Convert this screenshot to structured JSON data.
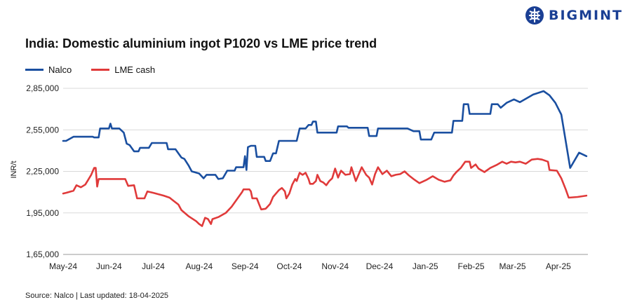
{
  "brand": {
    "name": "BIGMINT",
    "color": "#1a3f94"
  },
  "title": "India: Domestic aluminium ingot P1020 vs LME price trend",
  "ylabel": "INR/t",
  "source": "Source: Nalco | Last updated: 18-04-2025",
  "chart_data": {
    "type": "line",
    "title": "India: Domestic aluminium ingot P1020 vs LME price trend",
    "xlabel": "",
    "ylabel": "INR/t",
    "ylim": [
      165000,
      285000
    ],
    "yticks": [
      165000,
      195000,
      225000,
      255000,
      285000
    ],
    "ytick_labels": [
      "1,65,000",
      "1,95,000",
      "2,25,000",
      "2,55,000",
      "2,85,000"
    ],
    "xticks": [
      "2024-05-01",
      "2024-06-01",
      "2024-07-01",
      "2024-08-01",
      "2024-09-01",
      "2024-10-01",
      "2024-11-01",
      "2024-12-01",
      "2025-01-01",
      "2025-02-01",
      "2025-03-01",
      "2025-04-01"
    ],
    "xtick_labels": [
      "May-24",
      "Jun-24",
      "Jul-24",
      "Aug-24",
      "Sep-24",
      "Oct-24",
      "Nov-24",
      "Dec-24",
      "Jan-25",
      "Feb-25",
      "Mar-25",
      "Apr-25"
    ],
    "xlim": [
      "2024-05-01",
      "2025-04-21"
    ],
    "grid": "horizontal",
    "legend": "top-left",
    "series": [
      {
        "name": "Nalco",
        "color": "#1a4fa0",
        "points": [
          [
            "2024-05-01",
            247000
          ],
          [
            "2024-05-03",
            247000
          ],
          [
            "2024-05-08",
            250000
          ],
          [
            "2024-05-15",
            250000
          ],
          [
            "2024-05-21",
            250000
          ],
          [
            "2024-05-22",
            249500
          ],
          [
            "2024-05-25",
            249500
          ],
          [
            "2024-05-26",
            256000
          ],
          [
            "2024-06-01",
            256000
          ],
          [
            "2024-06-02",
            259500
          ],
          [
            "2024-06-03",
            256000
          ],
          [
            "2024-06-08",
            256000
          ],
          [
            "2024-06-11",
            253000
          ],
          [
            "2024-06-13",
            245000
          ],
          [
            "2024-06-15",
            244000
          ],
          [
            "2024-06-18",
            239500
          ],
          [
            "2024-06-21",
            239500
          ],
          [
            "2024-06-22",
            242000
          ],
          [
            "2024-06-28",
            242000
          ],
          [
            "2024-06-30",
            245500
          ],
          [
            "2024-07-10",
            245500
          ],
          [
            "2024-07-11",
            241000
          ],
          [
            "2024-07-16",
            241000
          ],
          [
            "2024-07-20",
            235000
          ],
          [
            "2024-07-22",
            234000
          ],
          [
            "2024-07-25",
            229000
          ],
          [
            "2024-07-27",
            225000
          ],
          [
            "2024-08-01",
            223500
          ],
          [
            "2024-08-04",
            220000
          ],
          [
            "2024-08-06",
            222500
          ],
          [
            "2024-08-12",
            222500
          ],
          [
            "2024-08-14",
            219500
          ],
          [
            "2024-08-17",
            220000
          ],
          [
            "2024-08-20",
            225500
          ],
          [
            "2024-08-25",
            225500
          ],
          [
            "2024-08-26",
            228000
          ],
          [
            "2024-08-31",
            228000
          ],
          [
            "2024-09-01",
            236000
          ],
          [
            "2024-09-02",
            226000
          ],
          [
            "2024-09-03",
            242500
          ],
          [
            "2024-09-05",
            243500
          ],
          [
            "2024-09-08",
            243500
          ],
          [
            "2024-09-09",
            235500
          ],
          [
            "2024-09-14",
            235500
          ],
          [
            "2024-09-15",
            232500
          ],
          [
            "2024-09-18",
            232500
          ],
          [
            "2024-09-20",
            238000
          ],
          [
            "2024-09-22",
            238000
          ],
          [
            "2024-09-24",
            247000
          ],
          [
            "2024-10-06",
            247000
          ],
          [
            "2024-10-08",
            256000
          ],
          [
            "2024-10-12",
            256000
          ],
          [
            "2024-10-14",
            258500
          ],
          [
            "2024-10-16",
            258500
          ],
          [
            "2024-10-17",
            261000
          ],
          [
            "2024-10-19",
            261000
          ],
          [
            "2024-10-20",
            253000
          ],
          [
            "2024-11-02",
            253000
          ],
          [
            "2024-11-03",
            257500
          ],
          [
            "2024-11-09",
            257500
          ],
          [
            "2024-11-10",
            256500
          ],
          [
            "2024-11-23",
            256500
          ],
          [
            "2024-11-24",
            250500
          ],
          [
            "2024-11-29",
            250500
          ],
          [
            "2024-11-30",
            256000
          ],
          [
            "2024-12-20",
            256000
          ],
          [
            "2024-12-24",
            254000
          ],
          [
            "2024-12-28",
            254000
          ],
          [
            "2024-12-29",
            248000
          ],
          [
            "2025-01-05",
            248000
          ],
          [
            "2025-01-07",
            253000
          ],
          [
            "2025-01-19",
            253000
          ],
          [
            "2025-01-20",
            261500
          ],
          [
            "2025-01-26",
            261500
          ],
          [
            "2025-01-27",
            273500
          ],
          [
            "2025-01-30",
            273500
          ],
          [
            "2025-01-31",
            266500
          ],
          [
            "2025-02-14",
            266500
          ],
          [
            "2025-02-15",
            273500
          ],
          [
            "2025-02-19",
            273500
          ],
          [
            "2025-02-21",
            271000
          ],
          [
            "2025-02-25",
            274500
          ],
          [
            "2025-03-02",
            277000
          ],
          [
            "2025-03-06",
            275000
          ],
          [
            "2025-03-15",
            280500
          ],
          [
            "2025-03-22",
            283000
          ],
          [
            "2025-03-26",
            280000
          ],
          [
            "2025-03-30",
            274500
          ],
          [
            "2025-04-03",
            266000
          ],
          [
            "2025-04-09",
            227500
          ],
          [
            "2025-04-15",
            238500
          ],
          [
            "2025-04-20",
            236000
          ]
        ]
      },
      {
        "name": "LME cash",
        "color": "#e03a3a",
        "points": [
          [
            "2024-05-01",
            209000
          ],
          [
            "2024-05-03",
            209500
          ],
          [
            "2024-05-08",
            211000
          ],
          [
            "2024-05-10",
            215000
          ],
          [
            "2024-05-13",
            213500
          ],
          [
            "2024-05-16",
            215500
          ],
          [
            "2024-05-18",
            219000
          ],
          [
            "2024-05-20",
            222500
          ],
          [
            "2024-05-22",
            227500
          ],
          [
            "2024-05-23",
            227500
          ],
          [
            "2024-05-24",
            214000
          ],
          [
            "2024-05-25",
            219500
          ],
          [
            "2024-06-12",
            219500
          ],
          [
            "2024-06-14",
            214500
          ],
          [
            "2024-06-18",
            215000
          ],
          [
            "2024-06-20",
            205500
          ],
          [
            "2024-06-25",
            205500
          ],
          [
            "2024-06-27",
            210500
          ],
          [
            "2024-07-01",
            209500
          ],
          [
            "2024-07-08",
            207500
          ],
          [
            "2024-07-12",
            206000
          ],
          [
            "2024-07-15",
            203500
          ],
          [
            "2024-07-18",
            201000
          ],
          [
            "2024-07-20",
            197000
          ],
          [
            "2024-07-25",
            192500
          ],
          [
            "2024-07-30",
            189000
          ],
          [
            "2024-08-01",
            187000
          ],
          [
            "2024-08-03",
            185500
          ],
          [
            "2024-08-05",
            191500
          ],
          [
            "2024-08-07",
            190500
          ],
          [
            "2024-08-09",
            187000
          ],
          [
            "2024-08-10",
            190500
          ],
          [
            "2024-08-14",
            192000
          ],
          [
            "2024-08-19",
            195000
          ],
          [
            "2024-08-23",
            199500
          ],
          [
            "2024-08-26",
            204000
          ],
          [
            "2024-08-30",
            210000
          ],
          [
            "2024-08-31",
            212000
          ],
          [
            "2024-09-04",
            212000
          ],
          [
            "2024-09-05",
            210500
          ],
          [
            "2024-09-06",
            205500
          ],
          [
            "2024-09-09",
            205500
          ],
          [
            "2024-09-12",
            197500
          ],
          [
            "2024-09-15",
            198000
          ],
          [
            "2024-09-18",
            201500
          ],
          [
            "2024-09-20",
            206500
          ],
          [
            "2024-09-24",
            211500
          ],
          [
            "2024-09-26",
            213000
          ],
          [
            "2024-09-28",
            210500
          ],
          [
            "2024-09-29",
            205500
          ],
          [
            "2024-10-01",
            209000
          ],
          [
            "2024-10-03",
            215500
          ],
          [
            "2024-10-05",
            219500
          ],
          [
            "2024-10-06",
            218000
          ],
          [
            "2024-10-08",
            224000
          ],
          [
            "2024-10-10",
            222500
          ],
          [
            "2024-10-12",
            224000
          ],
          [
            "2024-10-14",
            219500
          ],
          [
            "2024-10-15",
            216000
          ],
          [
            "2024-10-17",
            216000
          ],
          [
            "2024-10-19",
            218000
          ],
          [
            "2024-10-20",
            222500
          ],
          [
            "2024-10-22",
            218000
          ],
          [
            "2024-10-24",
            217000
          ],
          [
            "2024-10-26",
            215000
          ],
          [
            "2024-10-28",
            218000
          ],
          [
            "2024-10-30",
            220000
          ],
          [
            "2024-11-01",
            227000
          ],
          [
            "2024-11-03",
            220500
          ],
          [
            "2024-11-05",
            225500
          ],
          [
            "2024-11-08",
            222500
          ],
          [
            "2024-11-11",
            223000
          ],
          [
            "2024-11-12",
            228000
          ],
          [
            "2024-11-15",
            218000
          ],
          [
            "2024-11-19",
            228000
          ],
          [
            "2024-11-22",
            222500
          ],
          [
            "2024-11-24",
            220500
          ],
          [
            "2024-11-26",
            215500
          ],
          [
            "2024-11-28",
            223000
          ],
          [
            "2024-11-30",
            228000
          ],
          [
            "2024-12-03",
            223000
          ],
          [
            "2024-12-06",
            225500
          ],
          [
            "2024-12-09",
            221500
          ],
          [
            "2024-12-12",
            222500
          ],
          [
            "2024-12-15",
            223000
          ],
          [
            "2024-12-18",
            225000
          ],
          [
            "2024-12-21",
            222000
          ],
          [
            "2024-12-24",
            219500
          ],
          [
            "2024-12-28",
            216500
          ],
          [
            "2025-01-02",
            219000
          ],
          [
            "2025-01-06",
            221500
          ],
          [
            "2025-01-10",
            219000
          ],
          [
            "2025-01-14",
            217500
          ],
          [
            "2025-01-18",
            218500
          ],
          [
            "2025-01-20",
            222000
          ],
          [
            "2025-01-22",
            224500
          ],
          [
            "2025-01-25",
            227500
          ],
          [
            "2025-01-28",
            232000
          ],
          [
            "2025-01-31",
            232000
          ],
          [
            "2025-02-01",
            227500
          ],
          [
            "2025-02-04",
            230000
          ],
          [
            "2025-02-06",
            227000
          ],
          [
            "2025-02-10",
            224500
          ],
          [
            "2025-02-14",
            227500
          ],
          [
            "2025-02-18",
            229500
          ],
          [
            "2025-02-22",
            232000
          ],
          [
            "2025-02-25",
            230500
          ],
          [
            "2025-02-28",
            232000
          ],
          [
            "2025-03-03",
            231500
          ],
          [
            "2025-03-06",
            232000
          ],
          [
            "2025-03-10",
            230500
          ],
          [
            "2025-03-14",
            233500
          ],
          [
            "2025-03-18",
            234000
          ],
          [
            "2025-03-21",
            233500
          ],
          [
            "2025-03-25",
            232000
          ],
          [
            "2025-03-26",
            226000
          ],
          [
            "2025-03-31",
            225500
          ],
          [
            "2025-04-03",
            220000
          ],
          [
            "2025-04-06",
            212000
          ],
          [
            "2025-04-08",
            206000
          ],
          [
            "2025-04-14",
            206500
          ],
          [
            "2025-04-20",
            207500
          ]
        ]
      }
    ]
  }
}
